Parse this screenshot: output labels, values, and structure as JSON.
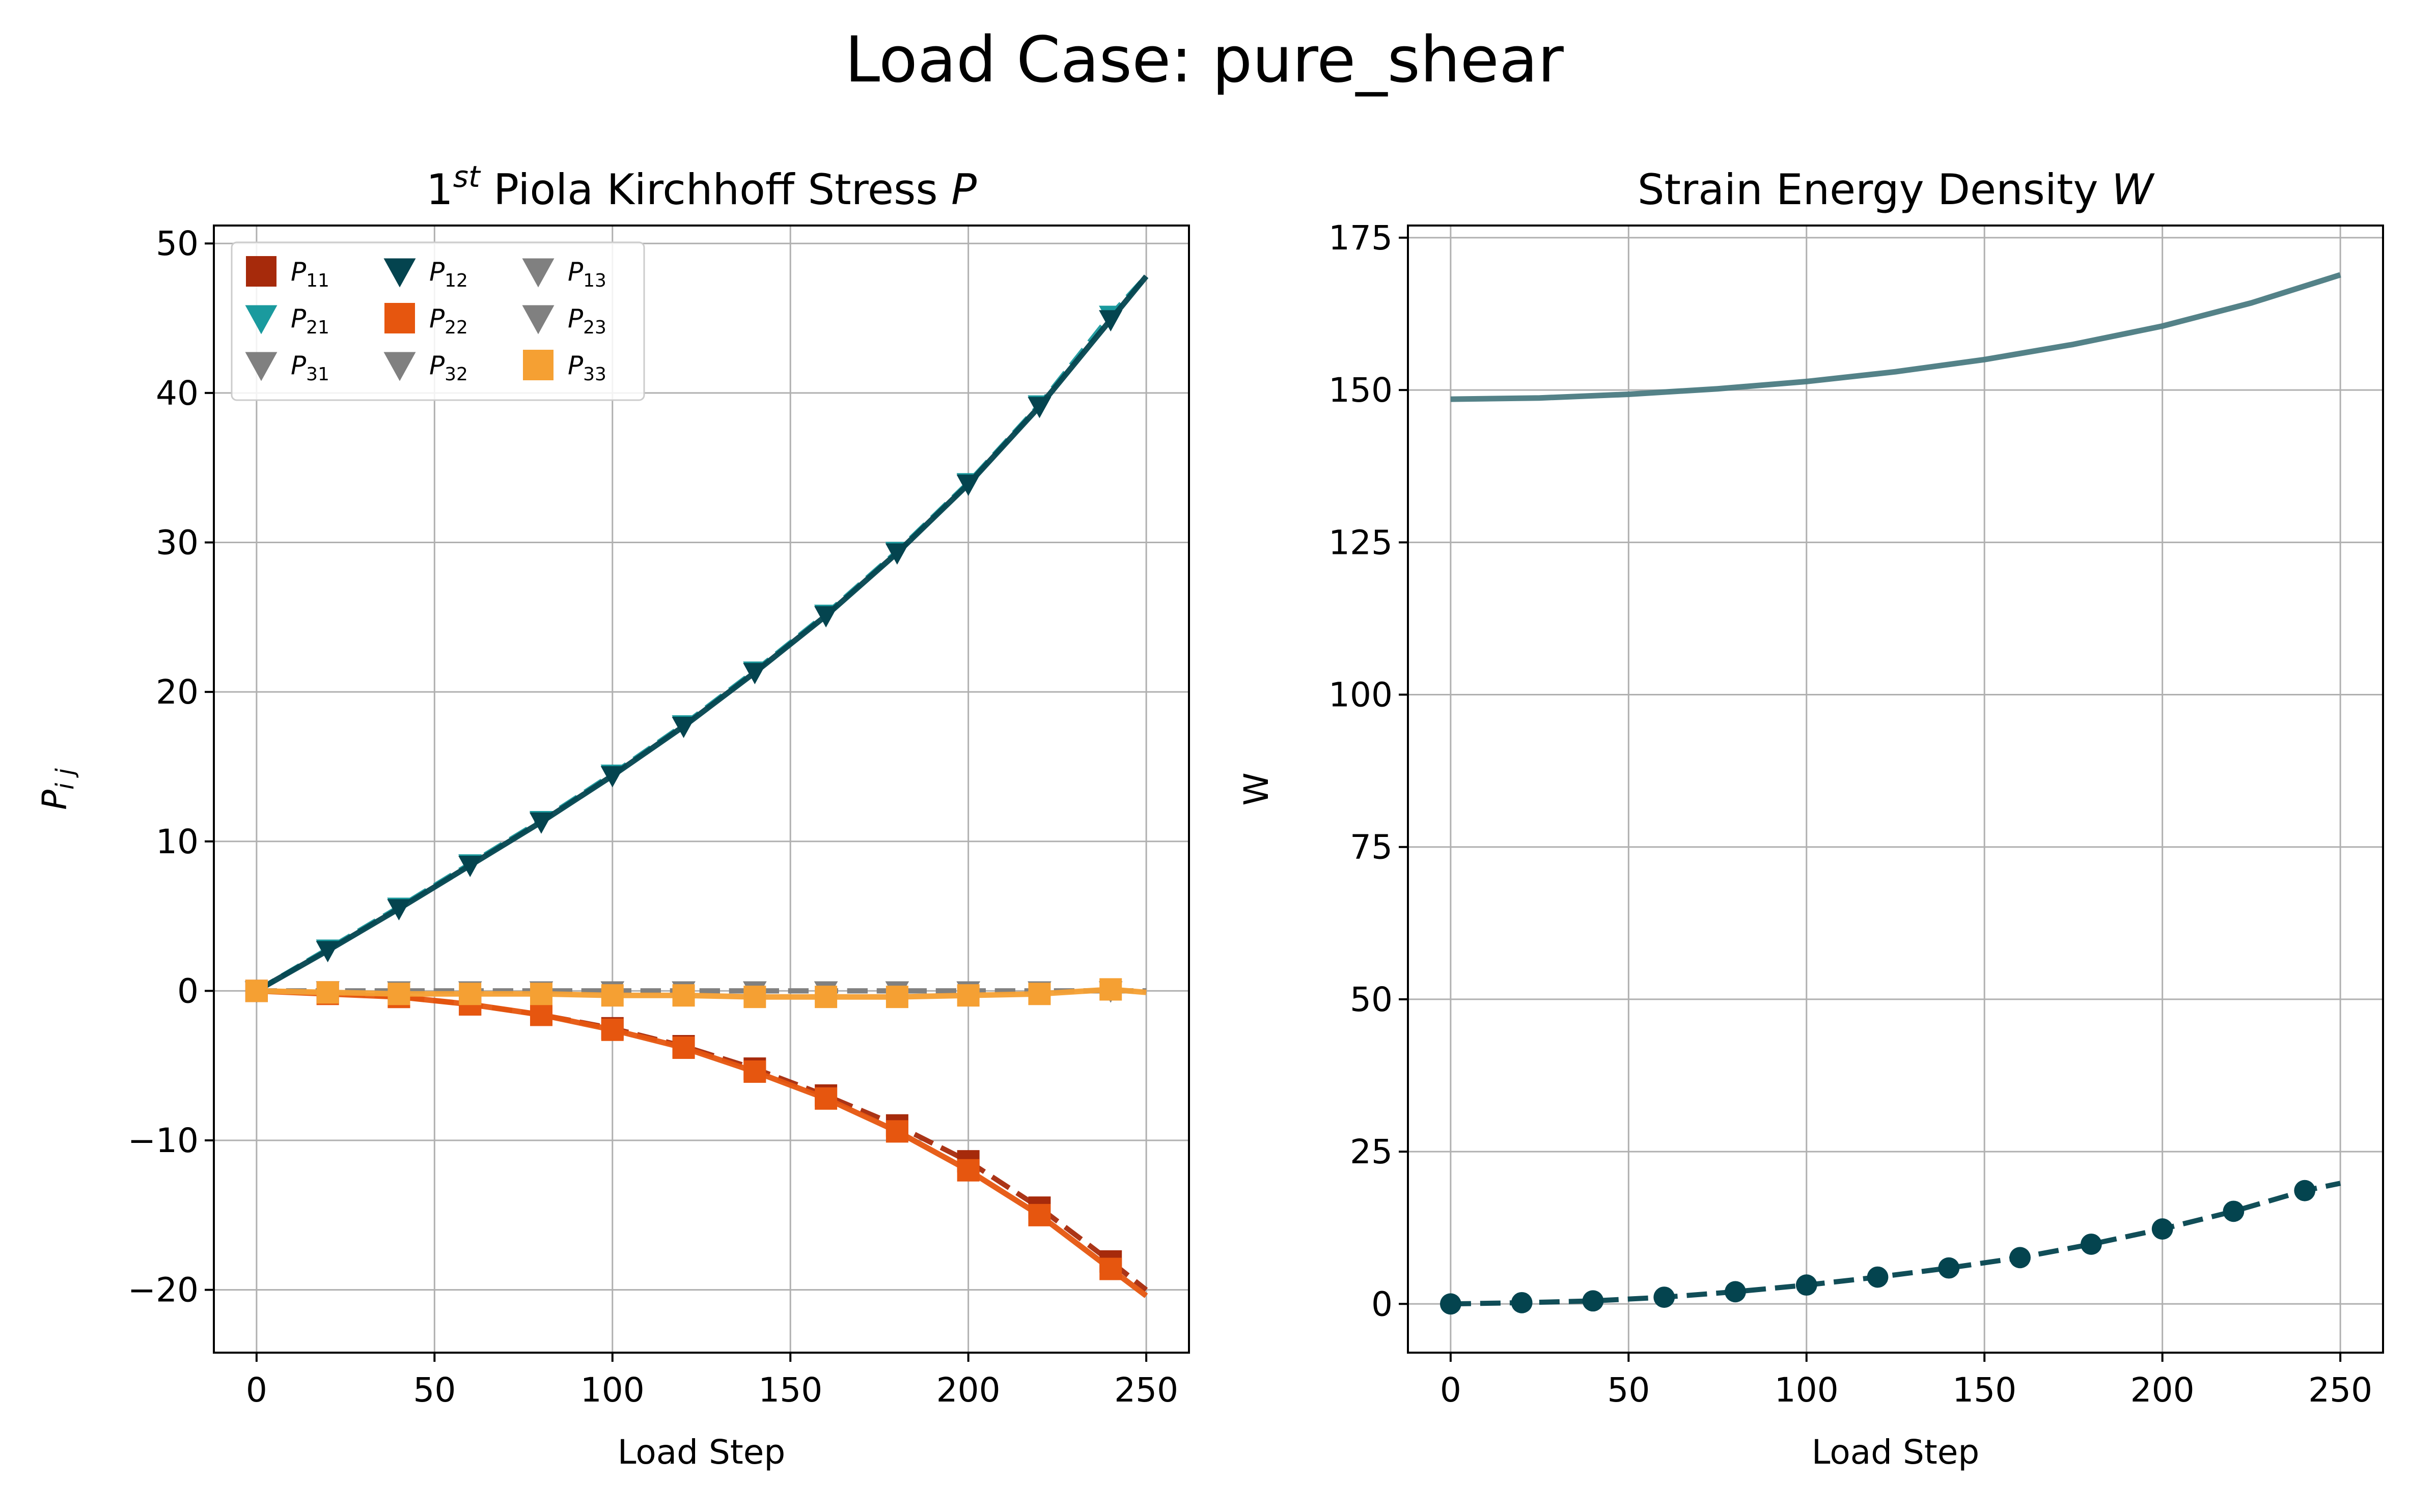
{
  "figure": {
    "suptitle": "Load Case: pure_shear"
  },
  "chart_data": [
    {
      "type": "line",
      "title": "1st Piola Kirchhoff Stress P",
      "title_parts": {
        "base": "1",
        "sup": "st",
        "rest": " Piola Kirchhoff Stress ",
        "var": "P"
      },
      "xlabel": "Load Step",
      "ylabel": "P_ij",
      "xlim": [
        -12,
        262
      ],
      "ylim": [
        -24.2,
        51.2
      ],
      "xticks": [
        0,
        50,
        100,
        150,
        200,
        250
      ],
      "yticks": [
        -20,
        -10,
        0,
        10,
        20,
        30,
        40,
        50
      ],
      "xtick_labels": [
        "0",
        "50",
        "100",
        "150",
        "200",
        "250"
      ],
      "ytick_labels": [
        "−20",
        "−10",
        "0",
        "10",
        "20",
        "30",
        "40",
        "50"
      ],
      "grid": true,
      "legend": {
        "location": "upper left",
        "columns": 3
      },
      "x": [
        0,
        20,
        40,
        60,
        80,
        100,
        120,
        140,
        160,
        180,
        200,
        220,
        240
      ],
      "series": [
        {
          "name": "P11",
          "label_main": "P",
          "label_sub": "11",
          "color": "#a62a0b",
          "marker": "square",
          "line": "dashed",
          "values": [
            0,
            -0.1,
            -0.4,
            -0.9,
            -1.6,
            -2.5,
            -3.7,
            -5.2,
            -7.0,
            -9.0,
            -11.4,
            -14.5,
            -18.1
          ],
          "curve_end": [
            250,
            -20.0
          ]
        },
        {
          "name": "P21",
          "label_main": "P",
          "label_sub": "21",
          "color": "#1a9a9e",
          "marker": "triangle-down",
          "line": "dashed",
          "values": [
            0,
            2.8,
            5.6,
            8.5,
            11.4,
            14.5,
            17.8,
            21.4,
            25.2,
            29.4,
            34.0,
            39.2,
            45.2
          ],
          "curve_end": [
            250,
            47.8
          ]
        },
        {
          "name": "P31",
          "label_main": "P",
          "label_sub": "31",
          "color": "#808080",
          "marker": "triangle-down",
          "line": "dashed",
          "values": [
            0,
            0,
            0,
            0,
            0,
            0,
            0,
            0,
            0,
            0,
            0,
            0,
            0
          ],
          "curve_end": [
            250,
            0
          ]
        },
        {
          "name": "P12",
          "label_main": "P",
          "label_sub": "12",
          "color": "#04444f",
          "marker": "triangle-down",
          "line": "solid",
          "values": [
            0,
            2.7,
            5.5,
            8.4,
            11.3,
            14.4,
            17.7,
            21.3,
            25.1,
            29.3,
            33.9,
            39.1,
            44.9
          ],
          "curve_end": [
            250,
            47.8
          ]
        },
        {
          "name": "P22",
          "label_main": "P",
          "label_sub": "22",
          "color": "#e6560f",
          "marker": "square",
          "line": "solid",
          "values": [
            0,
            -0.2,
            -0.4,
            -0.9,
            -1.6,
            -2.6,
            -3.8,
            -5.4,
            -7.2,
            -9.4,
            -12.0,
            -15.0,
            -18.6
          ],
          "curve_end": [
            250,
            -20.4
          ]
        },
        {
          "name": "P32",
          "label_main": "P",
          "label_sub": "32",
          "color": "#808080",
          "marker": "triangle-down",
          "line": "dashed",
          "values": [
            0,
            0,
            0,
            0,
            0,
            0,
            0,
            0,
            0,
            0,
            0,
            0,
            0
          ],
          "curve_end": [
            250,
            0
          ]
        },
        {
          "name": "P13",
          "label_main": "P",
          "label_sub": "13",
          "color": "#808080",
          "marker": "triangle-down",
          "line": "dashed",
          "values": [
            0,
            0,
            0,
            0,
            0,
            0,
            0,
            0,
            0,
            0,
            0,
            0,
            0
          ],
          "curve_end": [
            250,
            0
          ]
        },
        {
          "name": "P23",
          "label_main": "P",
          "label_sub": "23",
          "color": "#808080",
          "marker": "triangle-down",
          "line": "dashed",
          "values": [
            0,
            0,
            0,
            0,
            0,
            0,
            0,
            0,
            0,
            0,
            0,
            0,
            0
          ],
          "curve_end": [
            250,
            0
          ]
        },
        {
          "name": "P33",
          "label_main": "P",
          "label_sub": "33",
          "color": "#f5a033",
          "marker": "square",
          "line": "solid",
          "values": [
            0,
            -0.1,
            -0.2,
            -0.2,
            -0.2,
            -0.3,
            -0.3,
            -0.4,
            -0.4,
            -0.4,
            -0.3,
            -0.2,
            0.1
          ],
          "curve_end": [
            250,
            -0.1
          ]
        }
      ]
    },
    {
      "type": "line",
      "title": "Strain Energy Density W",
      "title_parts": {
        "base": "Strain Energy Density ",
        "sup": "",
        "rest": "",
        "var": "W"
      },
      "xlabel": "Load Step",
      "ylabel": "W",
      "xlim": [
        -12,
        262
      ],
      "ylim": [
        -8,
        177
      ],
      "xticks": [
        0,
        50,
        100,
        150,
        200,
        250
      ],
      "yticks": [
        0,
        25,
        50,
        75,
        100,
        125,
        150,
        175
      ],
      "xtick_labels": [
        "0",
        "50",
        "100",
        "150",
        "200",
        "250"
      ],
      "ytick_labels": [
        "0",
        "25",
        "50",
        "75",
        "100",
        "125",
        "150",
        "175"
      ],
      "grid": true,
      "series": [
        {
          "color": "#4b7b82",
          "marker": "none",
          "line": "solid",
          "x": [
            0,
            25,
            50,
            75,
            100,
            125,
            150,
            175,
            200,
            225,
            250
          ],
          "values": [
            148.5,
            148.7,
            149.3,
            150.2,
            151.4,
            153.0,
            155.0,
            157.5,
            160.5,
            164.3,
            168.9
          ]
        },
        {
          "color": "#04444f",
          "marker": "circle",
          "line": "dashed",
          "x": [
            0,
            20,
            40,
            60,
            80,
            100,
            120,
            140,
            160,
            180,
            200,
            220,
            240
          ],
          "values": [
            0,
            0.2,
            0.5,
            1.1,
            2.0,
            3.1,
            4.4,
            5.9,
            7.6,
            9.8,
            12.3,
            15.2,
            18.6
          ],
          "curve_end": [
            250,
            19.8
          ]
        }
      ]
    }
  ]
}
